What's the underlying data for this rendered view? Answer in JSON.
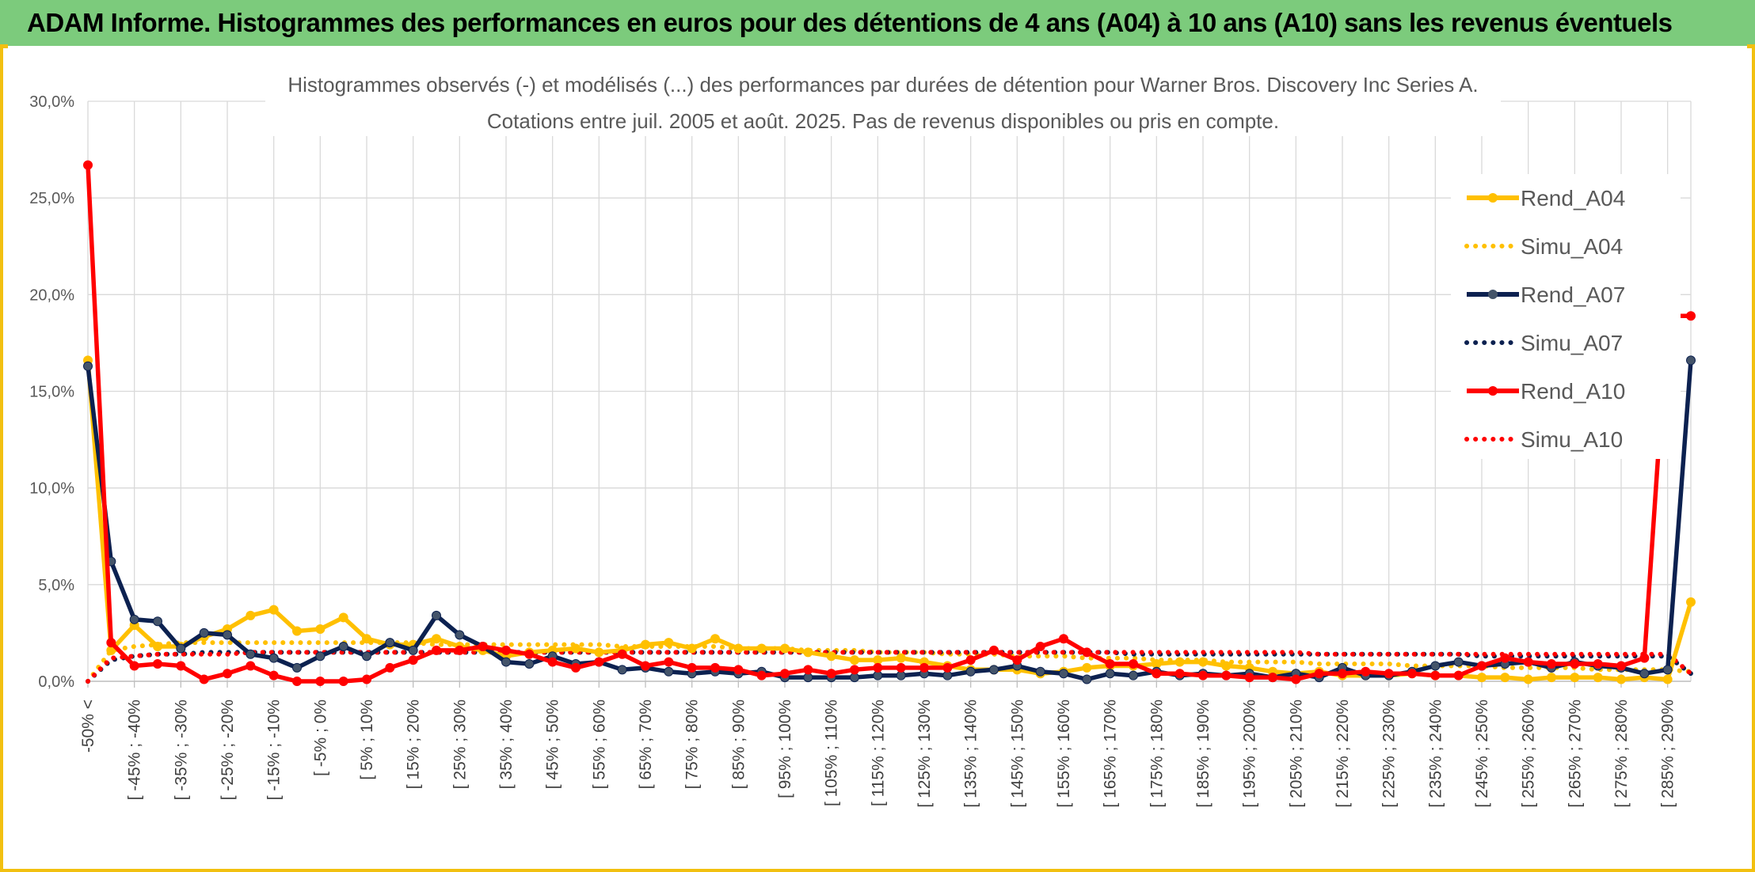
{
  "banner": {
    "title": "ADAM Informe. Histogrammes des performances en euros pour des détentions de 4 ans (A04) à 10 ans (A10) sans les revenus éventuels"
  },
  "chart_data": {
    "type": "line",
    "title_line1": "Histogrammes observés (-) et modélisés (...) des performances par durées de détention pour Warner Bros. Discovery Inc Series A.",
    "title_line2": "Cotations entre juil. 2005 et août. 2025. Pas de revenus disponibles ou pris en compte.",
    "ylim": [
      0,
      30
    ],
    "yticks": [
      "0,0%",
      "5,0%",
      "10,0%",
      "15,0%",
      "20,0%",
      "25,0%",
      "30,0%"
    ],
    "grid": true,
    "legend_position": "right",
    "x_tick_labels": [
      "-50% <",
      "[ -45% ; -40%",
      "[ -35% ; -30%",
      "[ -25% ; -20%",
      "[ -15% ; -10%",
      "[ -5% ; 0%",
      "[ 5% ; 10%",
      "[ 15% ; 20%",
      "[ 25% ; 30%",
      "[ 35% ; 40%",
      "[ 45% ; 50%",
      "[ 55% ; 60%",
      "[ 65% ; 70%",
      "[ 75% ; 80%",
      "[ 85% ; 90%",
      "[ 95% ; 100%",
      "[ 105% ; 110%",
      "[ 115% ; 120%",
      "[ 125% ; 130%",
      "[ 135% ; 140%",
      "[ 145% ; 150%",
      "[ 155% ; 160%",
      "[ 165% ; 170%",
      "[ 175% ; 180%",
      "[ 185% ; 190%",
      "[ 195% ; 200%",
      "[ 205% ; 210%",
      "[ 215% ; 220%",
      "[ 225% ; 230%",
      "[ 235% ; 240%",
      "[ 245% ; 250%",
      "[ 255% ; 260%",
      "[ 265% ; 270%",
      "[ 275% ; 280%",
      "[ 285% ; 290%"
    ],
    "n_points": 70,
    "series": [
      {
        "name": "Rend_A04",
        "color": "#ffc000",
        "style": "solid",
        "values": [
          16.6,
          1.6,
          2.9,
          1.8,
          1.8,
          2.3,
          2.7,
          3.4,
          3.7,
          2.6,
          2.7,
          3.3,
          2.2,
          1.9,
          1.9,
          2.2,
          1.8,
          1.6,
          1.3,
          1.5,
          1.6,
          1.7,
          1.5,
          1.6,
          1.9,
          2.0,
          1.7,
          2.2,
          1.7,
          1.7,
          1.7,
          1.5,
          1.3,
          1.1,
          1.1,
          1.2,
          1.0,
          0.8,
          0.6,
          0.6,
          0.6,
          0.4,
          0.5,
          0.7,
          0.8,
          0.8,
          0.9,
          1.0,
          1.0,
          0.8,
          0.7,
          0.5,
          0.4,
          0.5,
          0.3,
          0.3,
          0.3,
          0.4,
          0.3,
          0.3,
          0.2,
          0.2,
          0.1,
          0.2,
          0.2,
          0.2,
          0.1,
          0.2,
          0.1,
          4.1
        ]
      },
      {
        "name": "Simu_A04",
        "color": "#ffc000",
        "style": "dotted",
        "values": [
          0.0,
          1.6,
          1.8,
          1.9,
          2.0,
          2.0,
          2.0,
          2.0,
          2.0,
          2.0,
          2.0,
          2.0,
          2.0,
          2.0,
          2.0,
          1.9,
          1.9,
          1.9,
          1.9,
          1.9,
          1.9,
          1.9,
          1.9,
          1.8,
          1.8,
          1.8,
          1.8,
          1.8,
          1.7,
          1.7,
          1.7,
          1.6,
          1.6,
          1.6,
          1.5,
          1.5,
          1.5,
          1.4,
          1.4,
          1.4,
          1.3,
          1.3,
          1.3,
          1.2,
          1.2,
          1.2,
          1.1,
          1.1,
          1.1,
          1.0,
          1.0,
          1.0,
          1.0,
          0.9,
          0.9,
          0.9,
          0.9,
          0.8,
          0.8,
          0.8,
          0.8,
          0.7,
          0.7,
          0.7,
          0.7,
          0.6,
          0.6,
          0.6,
          0.6,
          0.5
        ]
      },
      {
        "name": "Rend_A07",
        "color": "#0c2150",
        "style": "solid",
        "values": [
          16.3,
          6.2,
          3.2,
          3.1,
          1.7,
          2.5,
          2.4,
          1.4,
          1.2,
          0.7,
          1.3,
          1.8,
          1.3,
          2.0,
          1.6,
          3.4,
          2.4,
          1.8,
          1.0,
          0.9,
          1.3,
          0.9,
          1.0,
          0.6,
          0.7,
          0.5,
          0.4,
          0.5,
          0.4,
          0.5,
          0.2,
          0.2,
          0.2,
          0.2,
          0.3,
          0.3,
          0.4,
          0.3,
          0.5,
          0.6,
          0.8,
          0.5,
          0.4,
          0.1,
          0.4,
          0.3,
          0.5,
          0.3,
          0.4,
          0.3,
          0.4,
          0.2,
          0.4,
          0.2,
          0.7,
          0.3,
          0.3,
          0.5,
          0.8,
          1.0,
          0.8,
          0.9,
          1.0,
          0.7,
          1.0,
          0.8,
          0.7,
          0.4,
          0.6,
          16.6
        ]
      },
      {
        "name": "Simu_A07",
        "color": "#0c2150",
        "style": "dotted",
        "values": [
          0.0,
          1.1,
          1.3,
          1.4,
          1.4,
          1.5,
          1.5,
          1.5,
          1.5,
          1.5,
          1.5,
          1.5,
          1.5,
          1.5,
          1.5,
          1.5,
          1.5,
          1.5,
          1.5,
          1.5,
          1.5,
          1.5,
          1.5,
          1.5,
          1.5,
          1.5,
          1.5,
          1.5,
          1.5,
          1.5,
          1.5,
          1.5,
          1.5,
          1.5,
          1.5,
          1.5,
          1.5,
          1.5,
          1.5,
          1.5,
          1.5,
          1.5,
          1.5,
          1.5,
          1.5,
          1.4,
          1.4,
          1.4,
          1.4,
          1.4,
          1.4,
          1.4,
          1.4,
          1.4,
          1.4,
          1.4,
          1.4,
          1.4,
          1.4,
          1.4,
          1.3,
          1.3,
          1.3,
          1.3,
          1.3,
          1.3,
          1.3,
          1.3,
          1.3,
          0.4
        ]
      },
      {
        "name": "Rend_A10",
        "color": "#ff0000",
        "style": "solid",
        "values": [
          26.7,
          2.0,
          0.8,
          0.9,
          0.8,
          0.1,
          0.4,
          0.8,
          0.3,
          0.0,
          0.0,
          0.0,
          0.1,
          0.7,
          1.1,
          1.6,
          1.6,
          1.8,
          1.6,
          1.4,
          1.0,
          0.7,
          1.0,
          1.4,
          0.8,
          1.0,
          0.7,
          0.7,
          0.6,
          0.3,
          0.4,
          0.6,
          0.4,
          0.6,
          0.7,
          0.7,
          0.7,
          0.7,
          1.1,
          1.6,
          1.1,
          1.8,
          2.2,
          1.5,
          0.9,
          0.9,
          0.4,
          0.4,
          0.3,
          0.3,
          0.2,
          0.2,
          0.1,
          0.4,
          0.4,
          0.5,
          0.4,
          0.4,
          0.3,
          0.3,
          0.8,
          1.2,
          1.0,
          0.9,
          0.9,
          0.9,
          0.8,
          1.2,
          18.9,
          18.9
        ]
      },
      {
        "name": "Simu_A10",
        "color": "#ff0000",
        "style": "dotted",
        "values": [
          0.0,
          1.2,
          1.3,
          1.4,
          1.4,
          1.4,
          1.4,
          1.5,
          1.5,
          1.5,
          1.5,
          1.5,
          1.5,
          1.5,
          1.5,
          1.5,
          1.5,
          1.5,
          1.5,
          1.5,
          1.5,
          1.5,
          1.5,
          1.5,
          1.5,
          1.5,
          1.5,
          1.5,
          1.5,
          1.5,
          1.5,
          1.5,
          1.5,
          1.5,
          1.5,
          1.5,
          1.5,
          1.5,
          1.5,
          1.5,
          1.5,
          1.5,
          1.5,
          1.5,
          1.5,
          1.5,
          1.5,
          1.5,
          1.5,
          1.5,
          1.5,
          1.5,
          1.5,
          1.4,
          1.4,
          1.4,
          1.4,
          1.4,
          1.4,
          1.4,
          1.4,
          1.4,
          1.4,
          1.4,
          1.4,
          1.4,
          1.4,
          1.4,
          1.4,
          0.4
        ]
      }
    ]
  }
}
